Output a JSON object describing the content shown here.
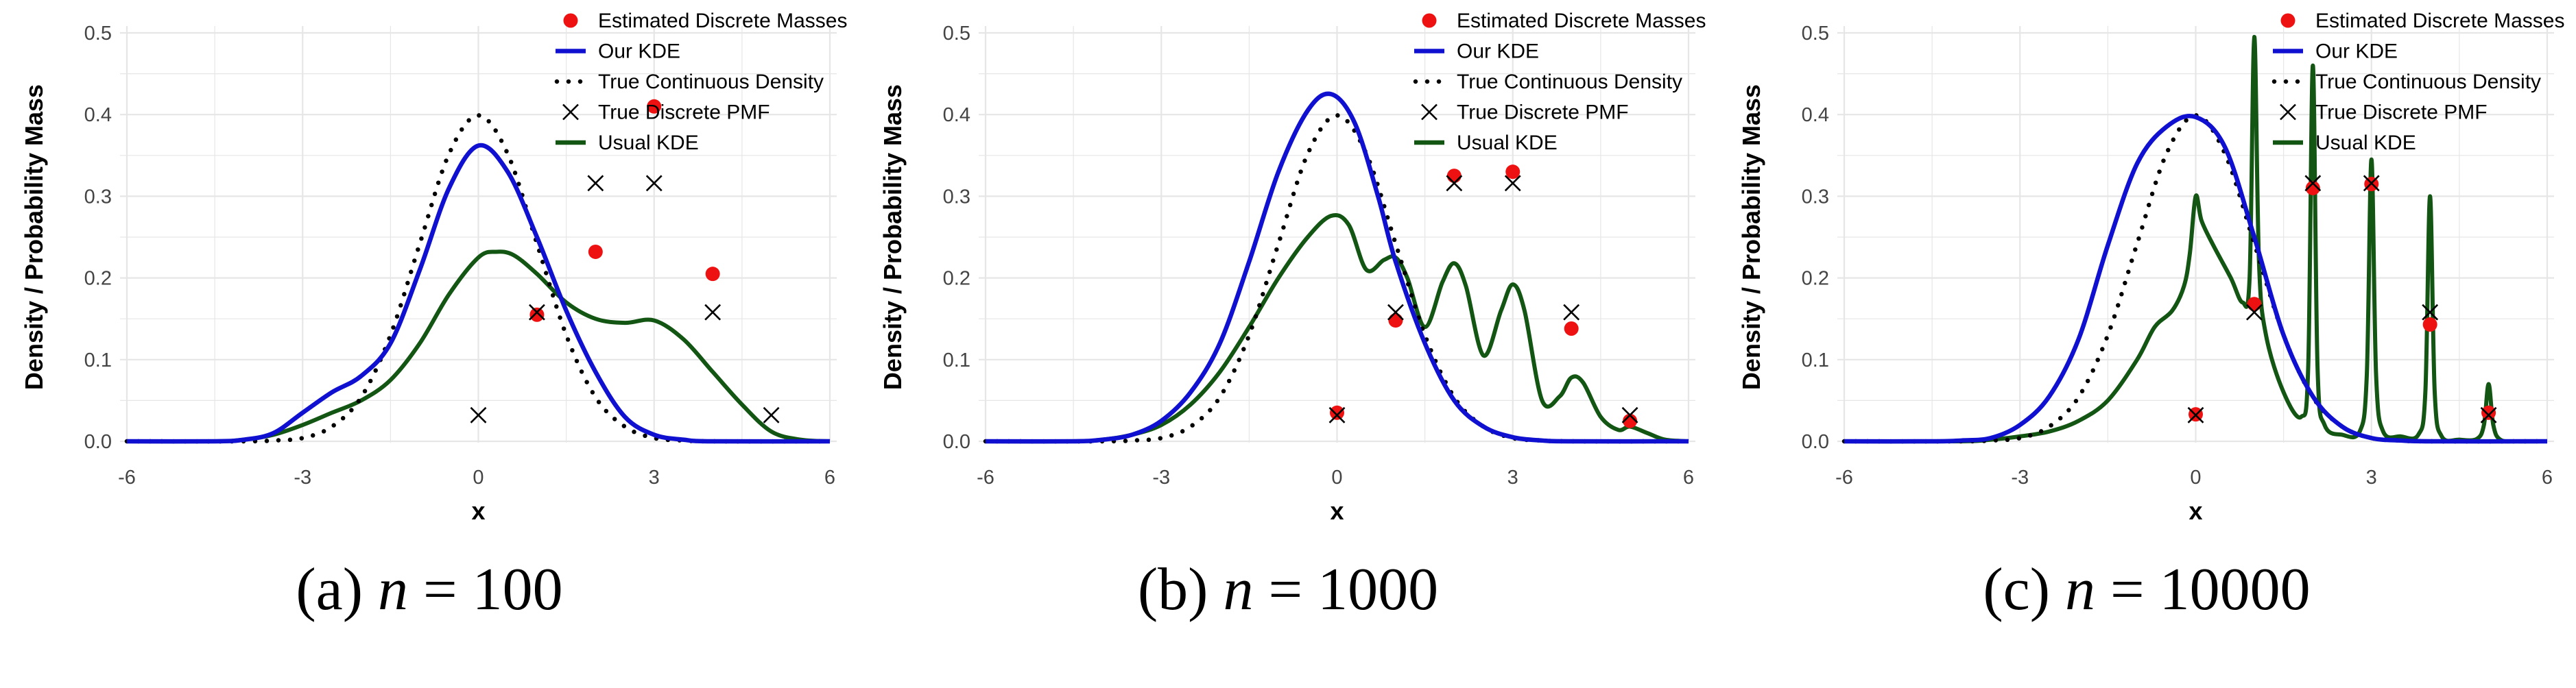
{
  "colors": {
    "estimated": "#ee1111",
    "our_kde": "#1010d0",
    "true_cont": "#000000",
    "true_pmf": "#000000",
    "usual_kde": "#135513",
    "grid": "#e6e6e6"
  },
  "legend": {
    "estimated": "Estimated Discrete Masses",
    "our_kde": "Our KDE",
    "true_cont": "True Continuous Density",
    "true_pmf": "True Discrete PMF",
    "usual_kde": "Usual KDE"
  },
  "chart_data": [
    {
      "type": "line",
      "caption_prefix": "(a) ",
      "caption_math": "n",
      "caption_rest": " = 100",
      "xlabel": "x",
      "ylabel": "Density / Probability Mass",
      "xlim": [
        -6,
        6
      ],
      "ylim": [
        0,
        0.5
      ],
      "xticks": [
        -6,
        -3,
        0,
        3,
        6
      ],
      "yticks": [
        0.0,
        0.1,
        0.2,
        0.3,
        0.4,
        0.5
      ],
      "grid": true,
      "legend_position": "top-right",
      "true_pmf": [
        [
          0,
          0.032
        ],
        [
          1,
          0.158
        ],
        [
          2,
          0.316
        ],
        [
          3,
          0.316
        ],
        [
          4,
          0.158
        ],
        [
          5,
          0.032
        ]
      ],
      "estimated_masses": [
        [
          1,
          0.155
        ],
        [
          2,
          0.232
        ],
        [
          3,
          0.41
        ],
        [
          4,
          0.205
        ]
      ],
      "our_kde": {
        "x": [
          -6,
          -4.5,
          -4,
          -3.5,
          -3,
          -2.5,
          -2,
          -1.5,
          -1,
          -0.5,
          0,
          0.5,
          1,
          1.5,
          2,
          2.5,
          3,
          3.5,
          4,
          6
        ],
        "y": [
          0,
          0,
          0.002,
          0.01,
          0.035,
          0.06,
          0.08,
          0.12,
          0.21,
          0.31,
          0.362,
          0.33,
          0.25,
          0.16,
          0.085,
          0.03,
          0.008,
          0.002,
          0,
          0
        ]
      },
      "true_cont": {
        "x": [
          -6,
          -4,
          -3.5,
          -3,
          -2.5,
          -2,
          -1.5,
          -1,
          -0.5,
          0,
          0.5,
          1,
          1.5,
          2,
          2.5,
          3,
          3.5,
          4,
          6
        ],
        "y": [
          0,
          0,
          0.001,
          0.004,
          0.018,
          0.054,
          0.13,
          0.242,
          0.352,
          0.399,
          0.352,
          0.242,
          0.13,
          0.054,
          0.018,
          0.004,
          0.001,
          0,
          0
        ]
      },
      "usual_kde": {
        "x": [
          -6,
          -4.5,
          -4,
          -3.5,
          -3,
          -2.5,
          -2,
          -1.5,
          -1,
          -0.5,
          0,
          0.3,
          0.6,
          1,
          1.5,
          2,
          2.5,
          3,
          3.5,
          4,
          4.5,
          5,
          5.5,
          6
        ],
        "y": [
          0,
          0,
          0.002,
          0.008,
          0.02,
          0.035,
          0.05,
          0.075,
          0.12,
          0.18,
          0.225,
          0.232,
          0.228,
          0.205,
          0.17,
          0.15,
          0.145,
          0.148,
          0.125,
          0.085,
          0.045,
          0.012,
          0.002,
          0
        ]
      }
    },
    {
      "type": "line",
      "caption_prefix": "(b) ",
      "caption_math": "n",
      "caption_rest": " = 1000",
      "xlabel": "x",
      "ylabel": "Density / Probability Mass",
      "xlim": [
        -6,
        6
      ],
      "ylim": [
        0,
        0.5
      ],
      "xticks": [
        -6,
        -3,
        0,
        3,
        6
      ],
      "yticks": [
        0.0,
        0.1,
        0.2,
        0.3,
        0.4,
        0.5
      ],
      "grid": true,
      "legend_position": "top-right",
      "true_pmf": [
        [
          0,
          0.032
        ],
        [
          1,
          0.158
        ],
        [
          2,
          0.316
        ],
        [
          3,
          0.316
        ],
        [
          4,
          0.158
        ],
        [
          5,
          0.032
        ]
      ],
      "estimated_masses": [
        [
          0,
          0.035
        ],
        [
          1,
          0.148
        ],
        [
          2,
          0.325
        ],
        [
          3,
          0.33
        ],
        [
          4,
          0.138
        ],
        [
          5,
          0.025
        ]
      ],
      "our_kde": {
        "x": [
          -6,
          -4.5,
          -4,
          -3.5,
          -3,
          -2.5,
          -2,
          -1.5,
          -1,
          -0.5,
          -0.1,
          0.3,
          0.7,
          1,
          1.5,
          2,
          2.5,
          3,
          3.5,
          4,
          6
        ],
        "y": [
          0,
          0,
          0.002,
          0.008,
          0.025,
          0.06,
          0.12,
          0.22,
          0.33,
          0.405,
          0.425,
          0.39,
          0.3,
          0.22,
          0.12,
          0.05,
          0.018,
          0.005,
          0.001,
          0,
          0
        ]
      },
      "true_cont": {
        "x": [
          -6,
          -4,
          -3.5,
          -3,
          -2.5,
          -2,
          -1.5,
          -1,
          -0.5,
          0,
          0.5,
          1,
          1.5,
          2,
          2.5,
          3,
          3.5,
          4,
          6
        ],
        "y": [
          0,
          0,
          0.001,
          0.004,
          0.018,
          0.054,
          0.13,
          0.242,
          0.352,
          0.399,
          0.352,
          0.242,
          0.13,
          0.054,
          0.018,
          0.004,
          0.001,
          0,
          0
        ]
      },
      "usual_kde": {
        "x": [
          -6,
          -4.5,
          -4,
          -3.5,
          -3,
          -2.5,
          -2,
          -1.5,
          -1,
          -0.5,
          -0.1,
          0.2,
          0.5,
          0.8,
          1,
          1.2,
          1.5,
          1.8,
          2,
          2.2,
          2.5,
          2.8,
          3,
          3.2,
          3.5,
          3.8,
          4,
          4.2,
          4.5,
          4.8,
          5,
          5.3,
          5.6,
          6
        ],
        "y": [
          0,
          0,
          0.002,
          0.008,
          0.02,
          0.045,
          0.085,
          0.14,
          0.2,
          0.25,
          0.276,
          0.265,
          0.21,
          0.222,
          0.225,
          0.2,
          0.14,
          0.195,
          0.218,
          0.19,
          0.105,
          0.16,
          0.192,
          0.16,
          0.05,
          0.055,
          0.078,
          0.072,
          0.03,
          0.014,
          0.018,
          0.01,
          0.002,
          0
        ]
      }
    },
    {
      "type": "line",
      "caption_prefix": "(c) ",
      "caption_math": "n",
      "caption_rest": " = 10000",
      "xlabel": "x",
      "ylabel": "Density / Probability Mass",
      "xlim": [
        -6,
        6
      ],
      "ylim": [
        0,
        0.5
      ],
      "xticks": [
        -6,
        -3,
        0,
        3,
        6
      ],
      "yticks": [
        0.0,
        0.1,
        0.2,
        0.3,
        0.4,
        0.5
      ],
      "grid": true,
      "legend_position": "top-right",
      "true_pmf": [
        [
          0,
          0.032
        ],
        [
          1,
          0.158
        ],
        [
          2,
          0.316
        ],
        [
          3,
          0.316
        ],
        [
          4,
          0.158
        ],
        [
          5,
          0.032
        ]
      ],
      "estimated_masses": [
        [
          0,
          0.033
        ],
        [
          1,
          0.168
        ],
        [
          2,
          0.31
        ],
        [
          3,
          0.315
        ],
        [
          4,
          0.143
        ],
        [
          5,
          0.035
        ]
      ],
      "our_kde": {
        "x": [
          -6,
          -4.5,
          -4,
          -3.5,
          -3,
          -2.5,
          -2,
          -1.5,
          -1,
          -0.5,
          0,
          0.5,
          1,
          1.5,
          2,
          2.5,
          3,
          3.5,
          4,
          6
        ],
        "y": [
          0,
          0,
          0.001,
          0.004,
          0.02,
          0.055,
          0.125,
          0.24,
          0.34,
          0.385,
          0.397,
          0.36,
          0.25,
          0.13,
          0.055,
          0.018,
          0.004,
          0.001,
          0,
          0
        ]
      },
      "true_cont": {
        "x": [
          -6,
          -4,
          -3.5,
          -3,
          -2.5,
          -2,
          -1.5,
          -1,
          -0.5,
          0,
          0.5,
          1,
          1.5,
          2,
          2.5,
          3,
          3.5,
          4,
          6
        ],
        "y": [
          0,
          0,
          0.001,
          0.004,
          0.018,
          0.054,
          0.13,
          0.242,
          0.352,
          0.399,
          0.352,
          0.242,
          0.13,
          0.054,
          0.018,
          0.004,
          0.001,
          0,
          0
        ]
      },
      "usual_kde": {
        "x": [
          -6,
          -4,
          -3.5,
          -3,
          -2.5,
          -2,
          -1.5,
          -1,
          -0.7,
          -0.4,
          -0.2,
          -0.1,
          0,
          0.1,
          0.3,
          0.6,
          0.8,
          0.92,
          1,
          1.08,
          1.2,
          1.5,
          1.8,
          1.92,
          2,
          2.08,
          2.2,
          2.5,
          2.8,
          2.92,
          3,
          3.08,
          3.2,
          3.5,
          3.8,
          3.92,
          4,
          4.08,
          4.2,
          4.5,
          4.8,
          4.92,
          5,
          5.08,
          5.2,
          5.5,
          6
        ],
        "y": [
          0,
          0,
          0.002,
          0.006,
          0.012,
          0.025,
          0.05,
          0.1,
          0.14,
          0.16,
          0.19,
          0.23,
          0.3,
          0.27,
          0.24,
          0.2,
          0.17,
          0.2,
          0.495,
          0.22,
          0.13,
          0.06,
          0.03,
          0.09,
          0.46,
          0.09,
          0.02,
          0.008,
          0.012,
          0.08,
          0.345,
          0.08,
          0.012,
          0.006,
          0.008,
          0.06,
          0.3,
          0.06,
          0.006,
          0.002,
          0.003,
          0.02,
          0.07,
          0.02,
          0.002,
          0,
          0
        ]
      }
    }
  ]
}
